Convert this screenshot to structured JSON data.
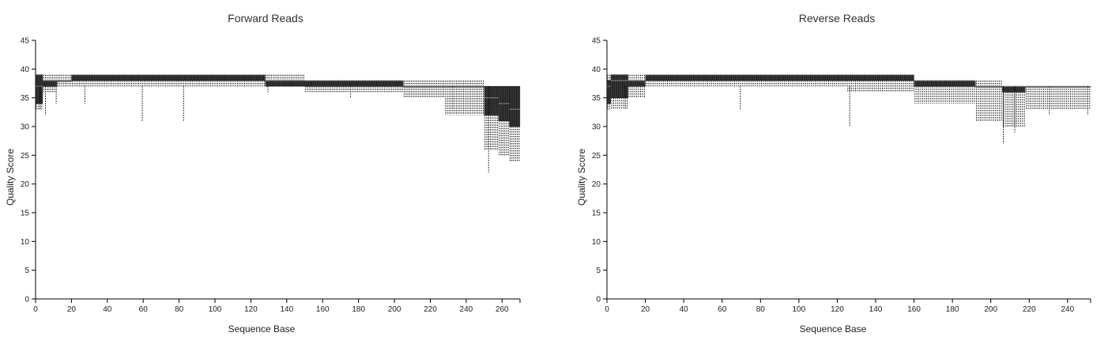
{
  "chart_data": [
    {
      "type": "box",
      "title": "Forward Reads",
      "xlabel": "Sequence Base",
      "ylabel": "Quality Score",
      "xlim": [
        0,
        270
      ],
      "ylim": [
        0,
        45
      ],
      "x_ticks": [
        "0",
        "20",
        "40",
        "60",
        "80",
        "100",
        "120",
        "140",
        "160",
        "180",
        "200",
        "220",
        "240",
        "260"
      ],
      "y_ticks": [
        "0",
        "5",
        "10",
        "15",
        "20",
        "25",
        "30",
        "35",
        "40",
        "45"
      ],
      "segments": [
        {
          "from": 1,
          "to": 4,
          "q1": 34,
          "median": 37,
          "q3": 39,
          "low": 33,
          "high": 39
        },
        {
          "from": 5,
          "to": 12,
          "q1": 37,
          "median": 38,
          "q3": 38,
          "low": 36,
          "high": 39
        },
        {
          "from": 13,
          "to": 20,
          "q1": 38,
          "median": 38,
          "q3": 38,
          "low": 37,
          "high": 39
        },
        {
          "from": 21,
          "to": 60,
          "q1": 38,
          "median": 39,
          "q3": 39,
          "low": 37,
          "high": 39
        },
        {
          "from": 61,
          "to": 128,
          "q1": 38,
          "median": 39,
          "q3": 39,
          "low": 37,
          "high": 39
        },
        {
          "from": 129,
          "to": 150,
          "q1": 37,
          "median": 38,
          "q3": 38,
          "low": 37,
          "high": 39
        },
        {
          "from": 151,
          "to": 205,
          "q1": 37,
          "median": 38,
          "q3": 38,
          "low": 36,
          "high": 38
        },
        {
          "from": 206,
          "to": 228,
          "q1": 37,
          "median": 37,
          "q3": 37,
          "low": 35,
          "high": 38
        },
        {
          "from": 229,
          "to": 250,
          "q1": 37,
          "median": 37,
          "q3": 37,
          "low": 32,
          "high": 38
        },
        {
          "from": 251,
          "to": 258,
          "q1": 32,
          "median": 35,
          "q3": 37,
          "low": 26,
          "high": 37
        },
        {
          "from": 259,
          "to": 264,
          "q1": 31,
          "median": 34,
          "q3": 37,
          "low": 25,
          "high": 37
        },
        {
          "from": 265,
          "to": 270,
          "q1": 30,
          "median": 33,
          "q3": 37,
          "low": 24,
          "high": 37
        }
      ],
      "low_outliers": [
        {
          "base": 3,
          "value": 33
        },
        {
          "base": 6,
          "value": 32
        },
        {
          "base": 12,
          "value": 34
        },
        {
          "base": 28,
          "value": 34
        },
        {
          "base": 60,
          "value": 31
        },
        {
          "base": 83,
          "value": 31
        },
        {
          "base": 130,
          "value": 36
        },
        {
          "base": 176,
          "value": 35
        },
        {
          "base": 233,
          "value": 33
        },
        {
          "base": 253,
          "value": 22
        }
      ]
    },
    {
      "type": "box",
      "title": "Reverse Reads",
      "xlabel": "Sequence Base",
      "ylabel": "Quality Score",
      "xlim": [
        0,
        252
      ],
      "ylim": [
        0,
        45
      ],
      "x_ticks": [
        "0",
        "20",
        "40",
        "60",
        "80",
        "100",
        "120",
        "140",
        "160",
        "180",
        "200",
        "220",
        "240"
      ],
      "y_ticks": [
        "0",
        "5",
        "10",
        "15",
        "20",
        "25",
        "30",
        "35",
        "40",
        "45"
      ],
      "segments": [
        {
          "from": 1,
          "to": 2,
          "q1": 34,
          "median": 37,
          "q3": 38,
          "low": 33,
          "high": 39
        },
        {
          "from": 3,
          "to": 11,
          "q1": 35,
          "median": 38,
          "q3": 39,
          "low": 33,
          "high": 39
        },
        {
          "from": 12,
          "to": 20,
          "q1": 37,
          "median": 38,
          "q3": 38,
          "low": 35,
          "high": 39
        },
        {
          "from": 21,
          "to": 60,
          "q1": 38,
          "median": 39,
          "q3": 39,
          "low": 37,
          "high": 39
        },
        {
          "from": 61,
          "to": 125,
          "q1": 38,
          "median": 39,
          "q3": 39,
          "low": 37,
          "high": 39
        },
        {
          "from": 126,
          "to": 160,
          "q1": 38,
          "median": 39,
          "q3": 39,
          "low": 36,
          "high": 39
        },
        {
          "from": 161,
          "to": 192,
          "q1": 37,
          "median": 38,
          "q3": 38,
          "low": 34,
          "high": 38
        },
        {
          "from": 193,
          "to": 206,
          "q1": 37,
          "median": 37,
          "q3": 37,
          "low": 31,
          "high": 38
        },
        {
          "from": 207,
          "to": 218,
          "q1": 36,
          "median": 37,
          "q3": 37,
          "low": 30,
          "high": 37
        },
        {
          "from": 219,
          "to": 252,
          "q1": 37,
          "median": 37,
          "q3": 37,
          "low": 33,
          "high": 37
        }
      ],
      "low_outliers": [
        {
          "base": 10,
          "value": 33
        },
        {
          "base": 70,
          "value": 33
        },
        {
          "base": 127,
          "value": 30
        },
        {
          "base": 207,
          "value": 27
        },
        {
          "base": 213,
          "value": 29
        },
        {
          "base": 231,
          "value": 32
        },
        {
          "base": 251,
          "value": 32
        }
      ]
    }
  ]
}
